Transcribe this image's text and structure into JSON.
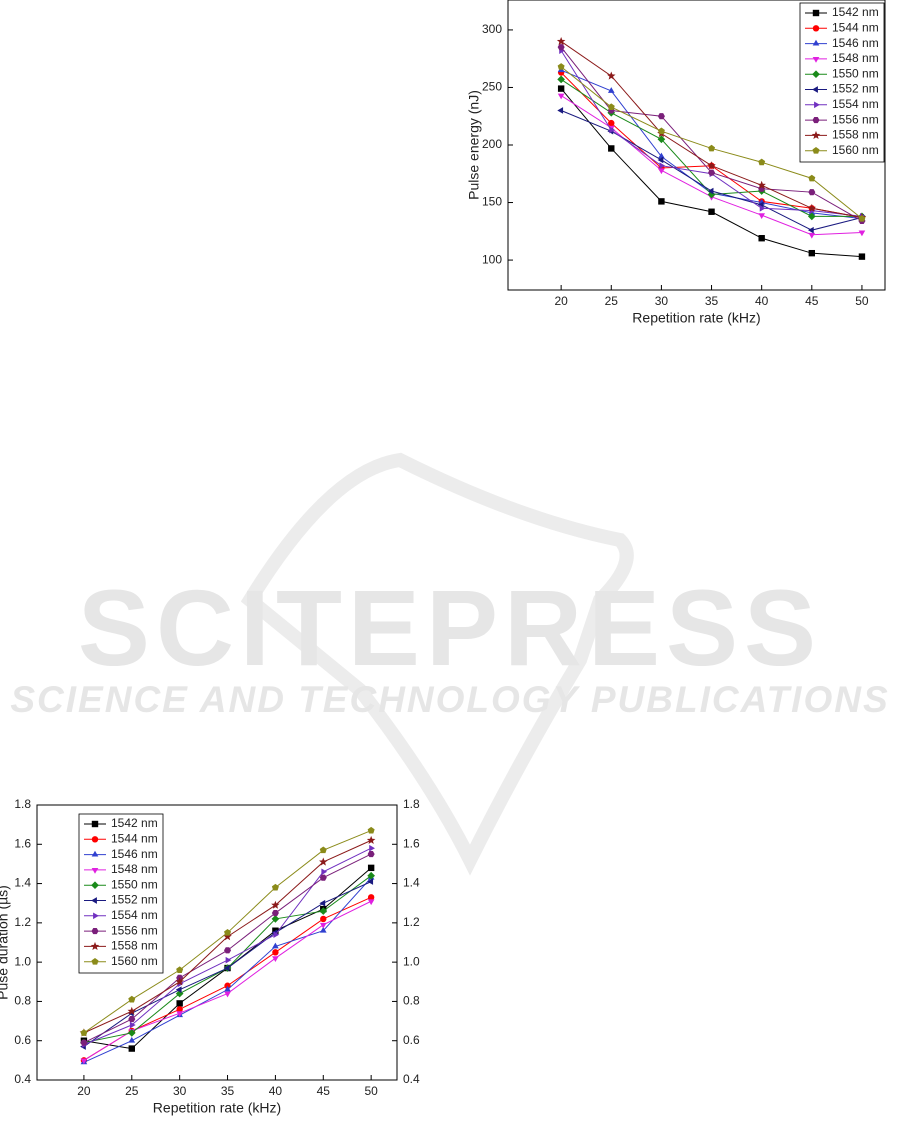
{
  "chart_data": [
    {
      "type": "line",
      "xlabel": "Repetition rate (kHz)",
      "ylabel": "Pulse energy (nJ)",
      "x": [
        20,
        25,
        30,
        35,
        40,
        45,
        50
      ],
      "xlim": [
        14.7,
        52.3
      ],
      "xticks": [
        20,
        25,
        30,
        35,
        40,
        45,
        50
      ],
      "ylim": [
        74,
        326
      ],
      "yticks": [
        100,
        150,
        200,
        250,
        300
      ],
      "grid": false,
      "legend": "upper right",
      "series": [
        {
          "name": "1542 nm",
          "color": "#000000",
          "marker": "square",
          "values": [
            249,
            197,
            151,
            142,
            119,
            106,
            103
          ]
        },
        {
          "name": "1544 nm",
          "color": "#ff0000",
          "marker": "circle",
          "values": [
            263,
            219,
            180,
            182,
            151,
            145,
            137
          ]
        },
        {
          "name": "1546 nm",
          "color": "#3040d0",
          "marker": "triangle-up",
          "values": [
            265,
            247,
            190,
            158,
            150,
            141,
            136
          ]
        },
        {
          "name": "1548 nm",
          "color": "#e020e0",
          "marker": "triangle-down",
          "values": [
            243,
            215,
            178,
            155,
            139,
            122,
            124
          ]
        },
        {
          "name": "1550 nm",
          "color": "#1a8a1a",
          "marker": "diamond",
          "values": [
            257,
            228,
            205,
            157,
            160,
            138,
            138
          ]
        },
        {
          "name": "1552 nm",
          "color": "#1a1a80",
          "marker": "triangle-left",
          "values": [
            230,
            212,
            187,
            160,
            148,
            126,
            137
          ]
        },
        {
          "name": "1554 nm",
          "color": "#7030c0",
          "marker": "triangle-right",
          "values": [
            282,
            213,
            182,
            175,
            145,
            143,
            138
          ]
        },
        {
          "name": "1556 nm",
          "color": "#7a1f7a",
          "marker": "hexagon",
          "values": [
            285,
            230,
            225,
            176,
            162,
            159,
            134
          ]
        },
        {
          "name": "1558 nm",
          "color": "#8b1a1a",
          "marker": "star",
          "values": [
            290,
            260,
            210,
            182,
            165,
            145,
            137
          ]
        },
        {
          "name": "1560 nm",
          "color": "#8b8b1a",
          "marker": "pentagon",
          "values": [
            268,
            233,
            212,
            197,
            185,
            171,
            136
          ]
        }
      ]
    },
    {
      "type": "line",
      "xlabel": "Repetition rate (kHz)",
      "ylabel": "Puse duration (µs)",
      "x": [
        20,
        25,
        30,
        35,
        40,
        45,
        50
      ],
      "xlim": [
        15.1,
        52.7
      ],
      "xticks": [
        20,
        25,
        30,
        35,
        40,
        45,
        50
      ],
      "ylim": [
        0.4,
        1.8
      ],
      "yticks": [
        0.4,
        0.6,
        0.8,
        {
          "value": 1,
          "label": "1.0"
        },
        1.2,
        1.4,
        1.6,
        1.8
      ],
      "y2lim": [
        0.4,
        1.8
      ],
      "y2ticks": [
        0.4,
        0.6,
        0.8,
        {
          "value": 1,
          "label": "1.0"
        },
        1.2,
        1.4,
        1.6,
        1.8
      ],
      "grid": false,
      "legend": "upper left",
      "series": [
        {
          "name": "1542 nm",
          "color": "#000000",
          "marker": "square",
          "values": [
            0.6,
            0.56,
            0.79,
            0.97,
            1.16,
            1.27,
            1.48
          ]
        },
        {
          "name": "1544 nm",
          "color": "#ff0000",
          "marker": "circle",
          "values": [
            0.5,
            0.65,
            0.76,
            0.88,
            1.05,
            1.22,
            1.33
          ]
        },
        {
          "name": "1546 nm",
          "color": "#3040d0",
          "marker": "triangle-up",
          "values": [
            0.49,
            0.6,
            0.73,
            0.86,
            1.08,
            1.16,
            1.43
          ]
        },
        {
          "name": "1548 nm",
          "color": "#e020e0",
          "marker": "triangle-down",
          "values": [
            0.5,
            0.65,
            0.74,
            0.84,
            1.02,
            1.19,
            1.31
          ]
        },
        {
          "name": "1550 nm",
          "color": "#1a8a1a",
          "marker": "diamond",
          "values": [
            0.59,
            0.64,
            0.84,
            0.97,
            1.22,
            1.26,
            1.44
          ]
        },
        {
          "name": "1552 nm",
          "color": "#1a1a80",
          "marker": "triangle-left",
          "values": [
            0.57,
            0.74,
            0.86,
            0.97,
            1.15,
            1.3,
            1.41
          ]
        },
        {
          "name": "1554 nm",
          "color": "#7030c0",
          "marker": "triangle-right",
          "values": [
            0.58,
            0.68,
            0.89,
            1.01,
            1.14,
            1.46,
            1.58
          ]
        },
        {
          "name": "1556 nm",
          "color": "#7a1f7a",
          "marker": "hexagon",
          "values": [
            0.59,
            0.71,
            0.92,
            1.06,
            1.25,
            1.43,
            1.55
          ]
        },
        {
          "name": "1558 nm",
          "color": "#8b1a1a",
          "marker": "star",
          "values": [
            0.64,
            0.75,
            0.9,
            1.13,
            1.29,
            1.51,
            1.62
          ]
        },
        {
          "name": "1560 nm",
          "color": "#8b8b1a",
          "marker": "pentagon",
          "values": [
            0.64,
            0.81,
            0.96,
            1.15,
            1.38,
            1.57,
            1.67
          ]
        }
      ]
    }
  ],
  "watermark": {
    "title": "SCITEPRESS",
    "subtitle": "SCIENCE AND TECHNOLOGY PUBLICATIONS"
  }
}
